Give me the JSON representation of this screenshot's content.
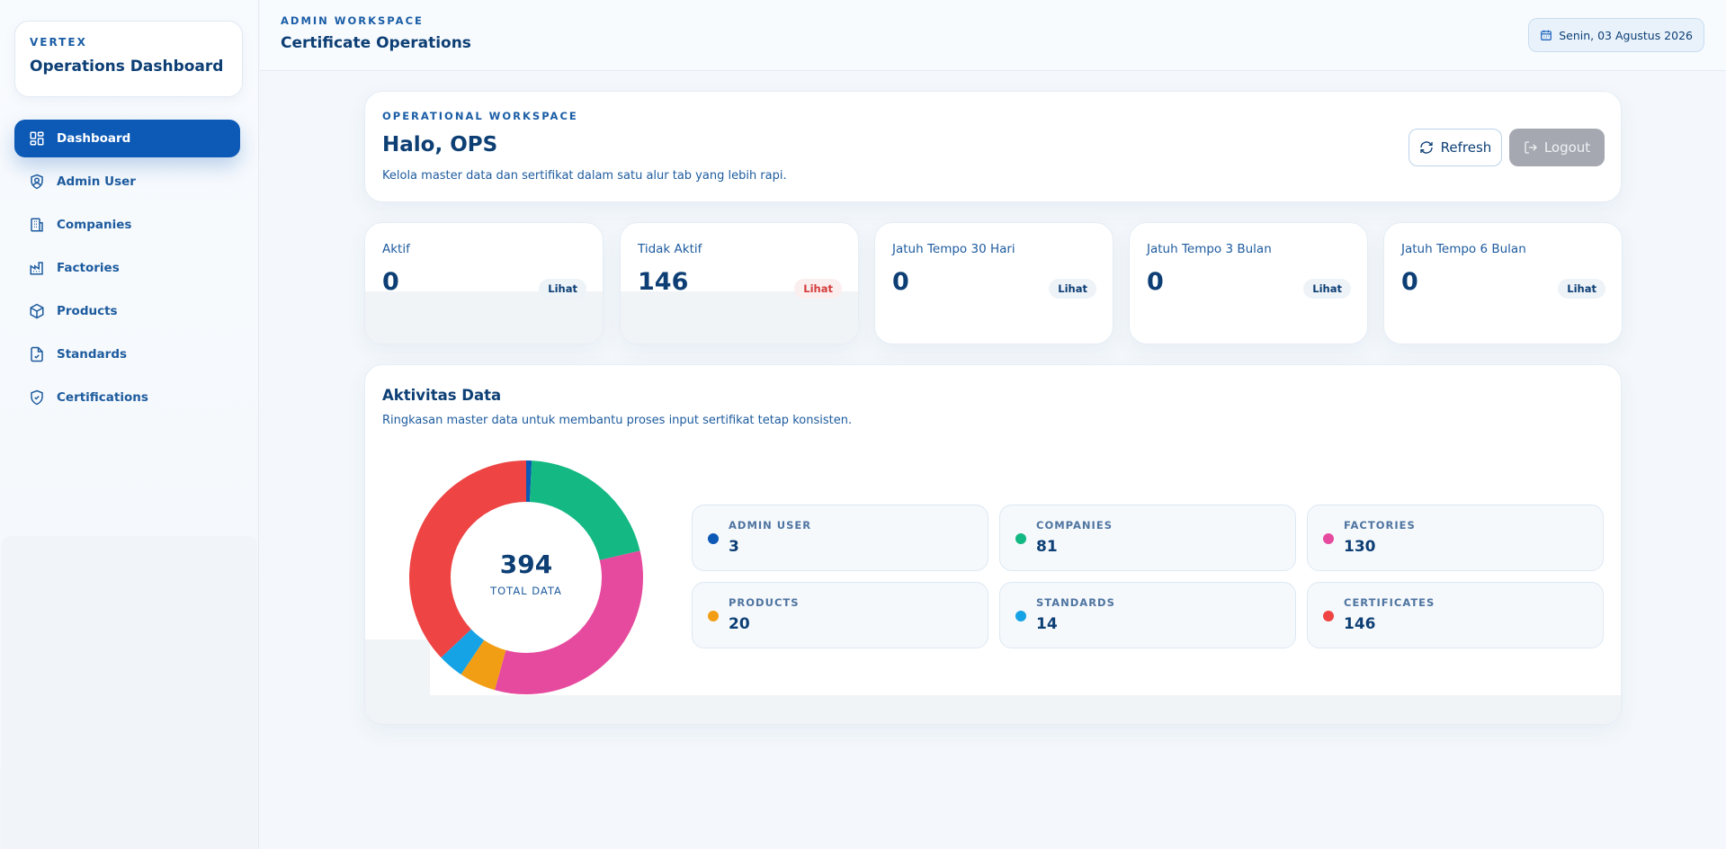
{
  "sidebar": {
    "brand_eyebrow": "VERTEX",
    "brand_title": "Operations Dashboard",
    "items": [
      {
        "label": "Dashboard",
        "icon": "dashboard-icon",
        "active": true
      },
      {
        "label": "Admin User",
        "icon": "shield-user-icon"
      },
      {
        "label": "Companies",
        "icon": "building-icon"
      },
      {
        "label": "Factories",
        "icon": "factory-icon"
      },
      {
        "label": "Products",
        "icon": "package-icon"
      },
      {
        "label": "Standards",
        "icon": "file-check-icon"
      },
      {
        "label": "Certifications",
        "icon": "shield-check-icon"
      }
    ]
  },
  "header": {
    "eyebrow": "ADMIN WORKSPACE",
    "title": "Certificate Operations",
    "date": "Senin, 03 Agustus 2026",
    "date_icon": "calendar-icon"
  },
  "hero": {
    "eyebrow": "OPERATIONAL WORKSPACE",
    "title": "Halo, OPS",
    "subtitle": "Kelola master data dan sertifikat dalam satu alur tab yang lebih rapi.",
    "refresh_label": "Refresh",
    "logout_label": "Logout"
  },
  "stats": [
    {
      "label": "Aktif",
      "value": "0",
      "link": "Lihat"
    },
    {
      "label": "Tidak Aktif",
      "value": "146",
      "link": "Lihat",
      "link_color": "#d33d3d"
    },
    {
      "label": "Jatuh Tempo 30 Hari",
      "value": "0",
      "link": "Lihat"
    },
    {
      "label": "Jatuh Tempo 3 Bulan",
      "value": "0",
      "link": "Lihat"
    },
    {
      "label": "Jatuh Tempo 6 Bulan",
      "value": "0",
      "link": "Lihat"
    }
  ],
  "activity": {
    "title": "Aktivitas Data",
    "subtitle": "Ringkasan master data untuk membantu proses input sertifikat tetap konsisten.",
    "total": "394",
    "total_label": "TOTAL DATA",
    "legend": [
      {
        "name": "ADMIN USER",
        "value": "3",
        "color": "#0c59b6"
      },
      {
        "name": "COMPANIES",
        "value": "81",
        "color": "#14b882"
      },
      {
        "name": "FACTORIES",
        "value": "130",
        "color": "#e64a9e"
      },
      {
        "name": "PRODUCTS",
        "value": "20",
        "color": "#f29e14"
      },
      {
        "name": "STANDARDS",
        "value": "14",
        "color": "#15a3e6"
      },
      {
        "name": "CERTIFICATES",
        "value": "146",
        "color": "#ee4444"
      }
    ]
  },
  "chart_data": {
    "type": "pie",
    "donut": true,
    "categories": [
      "Admin User",
      "Companies",
      "Factories",
      "Products",
      "Standards",
      "Certificates"
    ],
    "values": [
      3,
      81,
      130,
      20,
      14,
      146
    ],
    "colors": [
      "#0c59b6",
      "#14b882",
      "#e64a9e",
      "#f29e14",
      "#15a3e6",
      "#ee4444"
    ],
    "center_value": "394",
    "center_label": "TOTAL DATA"
  }
}
